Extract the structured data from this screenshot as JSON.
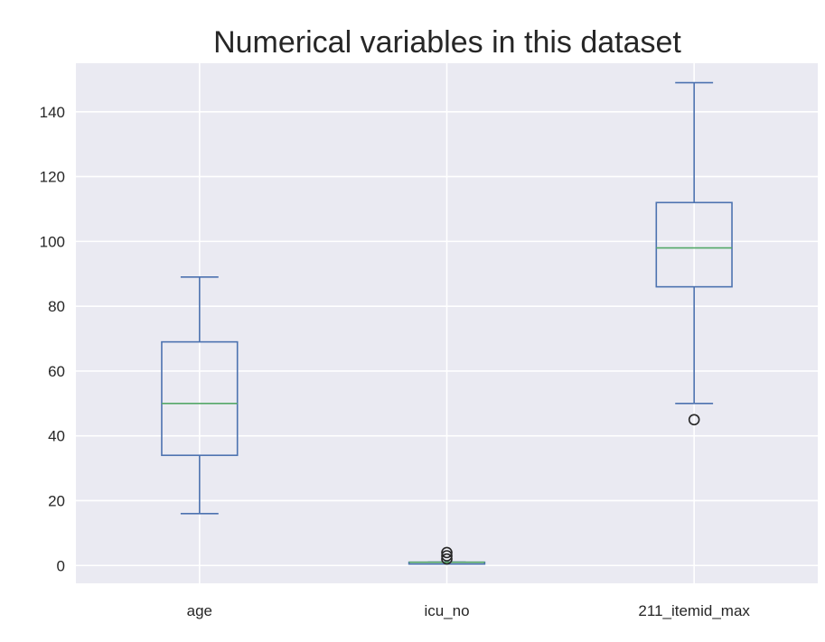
{
  "chart_data": {
    "type": "boxplot",
    "title": "Numerical variables in this dataset",
    "xlabel": "",
    "ylabel": "",
    "categories": [
      "age",
      "icu_no",
      "211_itemid_max"
    ],
    "yticks": [
      0,
      20,
      40,
      60,
      80,
      100,
      120,
      140
    ],
    "ylim": [
      -5.5,
      155
    ],
    "grid": true,
    "legend": "none",
    "boxes": [
      {
        "category": "age",
        "whisker_low": 16,
        "q1": 34,
        "median": 50,
        "q3": 69,
        "whisker_high": 89,
        "outliers": []
      },
      {
        "category": "icu_no",
        "whisker_low": 1,
        "q1": 1,
        "median": 1,
        "q3": 1,
        "whisker_high": 1,
        "outliers": [
          2,
          3,
          4
        ]
      },
      {
        "category": "211_itemid_max",
        "whisker_low": 50,
        "q1": 86,
        "median": 98,
        "q3": 112,
        "whisker_high": 149,
        "outliers": [
          45
        ]
      }
    ],
    "colors": {
      "plot_background": "#EAEAF2",
      "grid": "#FFFFFF",
      "box": "#4C72B0",
      "median": "#55A868",
      "outlier": "#262626",
      "text": "#262626"
    }
  }
}
